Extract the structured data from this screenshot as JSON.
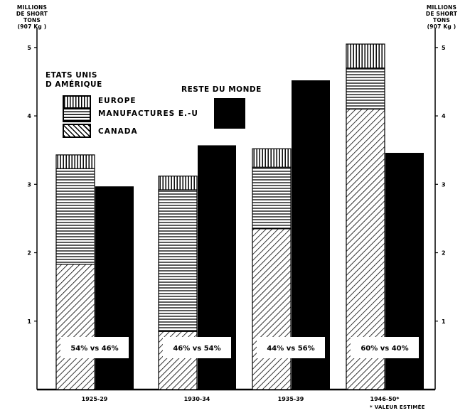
{
  "units": {
    "left": [
      "MILLIONS",
      "DE SHORT TONS",
      "(907 Kg )"
    ],
    "right": [
      "MILLIONS",
      "DE SHORT TONS",
      "(907 Kg )"
    ]
  },
  "legend": {
    "usa_title": [
      "ETATS UNIS",
      "D AMÉRIQUE"
    ],
    "europe": "EUROPE",
    "manufactures": "MANUFACTURES E.-U",
    "canada": "CANADA",
    "rest_title": "RESTE DU MONDE"
  },
  "footnote": "* VALEUR ESTIMÉE",
  "colors": {
    "ink": "#000000",
    "paper": "#ffffff"
  },
  "chart_data": {
    "type": "bar",
    "stacked_series_group": "ETATS UNIS D AMÉRIQUE",
    "categories": [
      "1925-29",
      "1930-34",
      "1935-39",
      "1946-50*"
    ],
    "series": [
      {
        "name": "CANADA",
        "pattern": "diagonal-hatch",
        "values": [
          1.83,
          0.85,
          2.35,
          4.1
        ]
      },
      {
        "name": "MANUFACTURES E.-U",
        "pattern": "horizontal-lines",
        "values": [
          1.4,
          2.07,
          0.9,
          0.6
        ]
      },
      {
        "name": "EUROPE",
        "pattern": "vertical-lines",
        "values": [
          0.2,
          0.2,
          0.27,
          0.35
        ]
      },
      {
        "name": "RESTE DU MONDE",
        "pattern": "solid",
        "values": [
          2.97,
          3.57,
          4.52,
          3.46
        ]
      }
    ],
    "ratio_labels": [
      "54% vs 46%",
      "46% vs 54%",
      "44% vs 56%",
      "60% vs 40%"
    ],
    "ylim": [
      0,
      5.05
    ],
    "yticks": [
      1,
      2,
      3,
      4,
      5
    ]
  }
}
